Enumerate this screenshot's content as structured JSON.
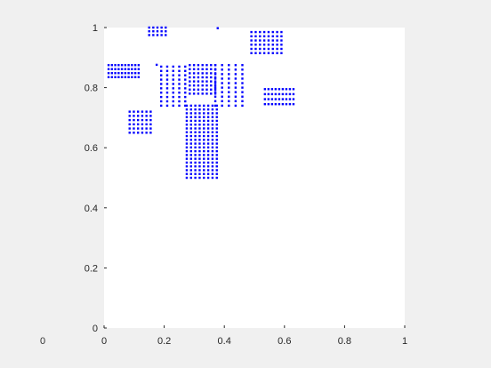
{
  "window": {
    "stray_label": "0"
  },
  "chart_data": {
    "type": "scatter",
    "title": "",
    "xlabel": "",
    "ylabel": "",
    "xlim": [
      0,
      1
    ],
    "ylim": [
      0,
      1
    ],
    "xticks": [
      0,
      0.2,
      0.4,
      0.6,
      0.8,
      1
    ],
    "yticks": [
      0,
      0.2,
      0.4,
      0.6,
      0.8,
      1
    ],
    "xtick_labels": [
      "0",
      "0.2",
      "0.4",
      "0.6",
      "0.8",
      "1"
    ],
    "ytick_labels": [
      "0",
      "0.2",
      "0.4",
      "0.6",
      "0.8",
      "1"
    ],
    "grid": false,
    "legend": "none",
    "marker_color": "#0000ff",
    "axes_color": "#ffffff",
    "figure_color": "#f0f0f0",
    "series": [
      {
        "clusters": [
          {
            "region": "left-top band",
            "x": [
              0.015,
              0.115
            ],
            "y": [
              0.835,
              0.875
            ],
            "nx": 10,
            "ny": 4
          },
          {
            "region": "left lower blob",
            "x": [
              0.085,
              0.155
            ],
            "y": [
              0.65,
              0.72
            ],
            "nx": 6,
            "ny": 6
          },
          {
            "region": "top small cluster",
            "x": [
              0.15,
              0.205
            ],
            "y": [
              0.975,
              1.0
            ],
            "nx": 5,
            "ny": 3
          },
          {
            "region": "central stem",
            "x": [
              0.275,
              0.375
            ],
            "y": [
              0.5,
              0.74
            ],
            "nx": 8,
            "ny": 20
          },
          {
            "region": "central cup",
            "x": [
              0.285,
              0.37
            ],
            "y": [
              0.78,
              0.875
            ],
            "nx": 7,
            "ny": 8
          },
          {
            "region": "left arm",
            "x": [
              0.19,
              0.27
            ],
            "y": [
              0.74,
              0.87
            ],
            "nx": 5,
            "ny": 10
          },
          {
            "region": "right arm",
            "x": [
              0.37,
              0.46
            ],
            "y": [
              0.74,
              0.875
            ],
            "nx": 5,
            "ny": 10
          },
          {
            "region": "upper right blob",
            "x": [
              0.49,
              0.59
            ],
            "y": [
              0.915,
              0.985
            ],
            "nx": 8,
            "ny": 6
          },
          {
            "region": "right middle band",
            "x": [
              0.535,
              0.63
            ],
            "y": [
              0.745,
              0.795
            ],
            "nx": 9,
            "ny": 4
          }
        ],
        "extra_points": [
          {
            "x": 0.378,
            "y": 0.998
          },
          {
            "x": 0.175,
            "y": 0.876
          }
        ]
      }
    ]
  }
}
